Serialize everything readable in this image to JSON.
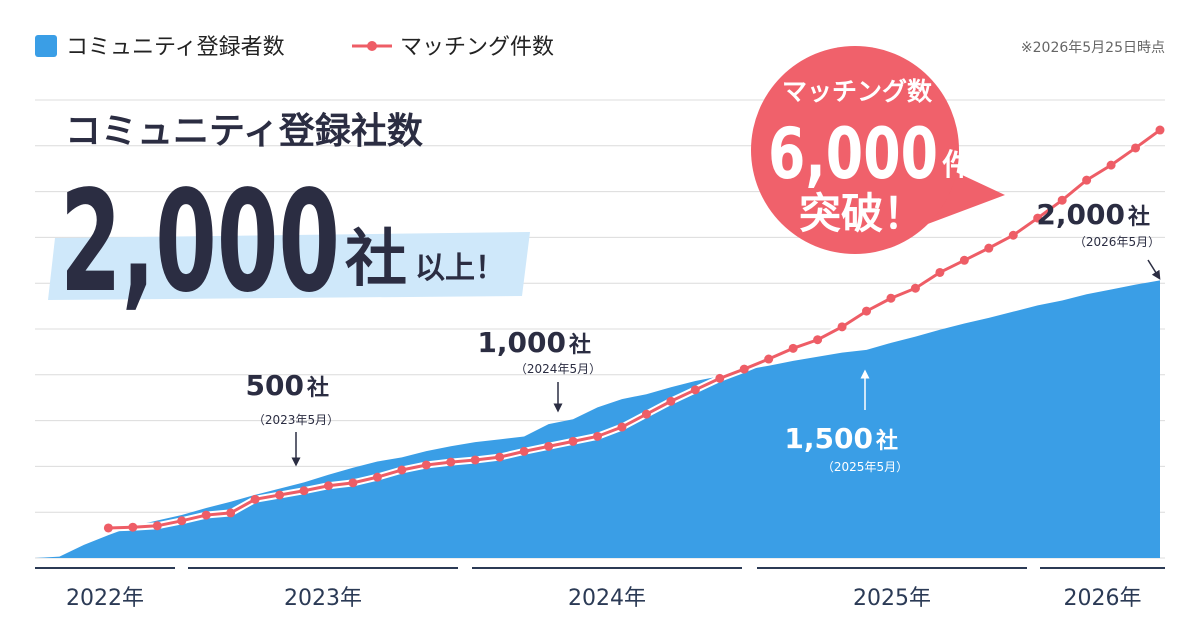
{
  "chart_data": {
    "type": "area_line",
    "legend": {
      "area": "コミュニティ登録者数",
      "line": "マッチング件数"
    },
    "note": "※2026年5月25日時点",
    "headline": {
      "title": "コミュニティ登録社数",
      "number": "2,000",
      "unit": "社",
      "suffix": "以上！"
    },
    "badge": {
      "title": "マッチング数",
      "number": "6,000",
      "unit": "件",
      "suffix": "突破！"
    },
    "annotations": [
      {
        "number": "500",
        "unit": "社",
        "date": "（2023年5月）"
      },
      {
        "number": "1,000",
        "unit": "社",
        "date": "（2024年5月）"
      },
      {
        "number": "1,500",
        "unit": "社",
        "date": "（2025年5月）"
      },
      {
        "number": "2,000",
        "unit": "社",
        "date": "（2026年5月）"
      }
    ],
    "x_groups": [
      "2022年",
      "2023年",
      "2024年",
      "2025年",
      "2026年"
    ],
    "categories": [
      null,
      null,
      null,
      null,
      null,
      null,
      null,
      null,
      null,
      null,
      null,
      null,
      null,
      null,
      null,
      null,
      null,
      null,
      null,
      null,
      null,
      null,
      null,
      null,
      null,
      null,
      null,
      null,
      null,
      null,
      null,
      null,
      null,
      null,
      null,
      null,
      null,
      null,
      null,
      null,
      null,
      null,
      null,
      null,
      null,
      null,
      null
    ],
    "series": [
      {
        "name": "コミュニティ登録者数",
        "kind": "area",
        "axis": "y",
        "color": "#3a9ee6",
        "values": [
          0,
          10,
          95,
          165,
          230,
          270,
          310,
          360,
          405,
          455,
          500,
          545,
          600,
          650,
          695,
          725,
          770,
          805,
          835,
          855,
          875,
          965,
          1000,
          1085,
          1145,
          1180,
          1230,
          1275,
          1310,
          1355,
          1385,
          1420,
          1450,
          1480,
          1500,
          1550,
          1595,
          1645,
          1690,
          1730,
          1775,
          1820,
          1855,
          1900,
          1935,
          1970,
          2000
        ]
      },
      {
        "name": "マッチング件数",
        "kind": "line",
        "axis": "y2",
        "color": "#ee5d66",
        "values": [
          null,
          null,
          null,
          420,
          430,
          450,
          520,
          600,
          630,
          820,
          880,
          940,
          1010,
          1050,
          1130,
          1230,
          1300,
          1340,
          1370,
          1410,
          1490,
          1560,
          1630,
          1700,
          1830,
          2010,
          2190,
          2350,
          2510,
          2640,
          2780,
          2930,
          3050,
          3230,
          3450,
          3630,
          3770,
          3990,
          4160,
          4330,
          4510,
          4750,
          5000,
          5280,
          5490,
          5730,
          5980
        ]
      }
    ],
    "ylim": [
      0,
      3300
    ],
    "y2lim": [
      0,
      6400
    ],
    "grid": true
  }
}
